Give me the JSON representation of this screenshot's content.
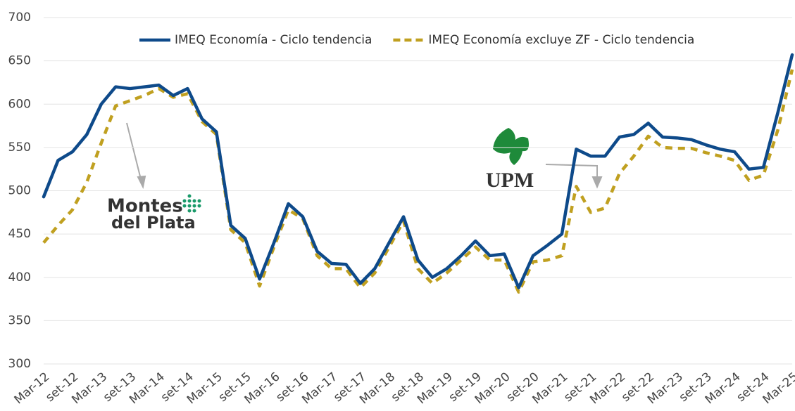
{
  "chart_data": {
    "type": "line",
    "categories": [
      "Mar-12",
      null,
      "set-12",
      null,
      "Mar-13",
      null,
      "set-13",
      null,
      "Mar-14",
      null,
      "set-14",
      null,
      "Mar-15",
      null,
      "set-15",
      null,
      "Mar-16",
      null,
      "set-16",
      null,
      "Mar-17",
      null,
      "set-17",
      null,
      "Mar-18",
      null,
      "set-18",
      null,
      "Mar-19",
      null,
      "set-19",
      null,
      "Mar-20",
      null,
      "set-20",
      null,
      "Mar-21",
      null,
      "set-21",
      null,
      "Mar-22",
      null,
      "set-22",
      null,
      "Mar-23",
      null,
      "set-23",
      null,
      "Mar-24",
      null,
      "set-24",
      null,
      "Mar-25"
    ],
    "series": [
      {
        "name": "IMEQ Economía - Ciclo tendencia",
        "color": "#0e4a8a",
        "dash": false,
        "values": [
          493,
          535,
          545,
          565,
          600,
          620,
          618,
          620,
          622,
          610,
          618,
          583,
          568,
          460,
          445,
          398,
          440,
          485,
          470,
          430,
          416,
          415,
          393,
          410,
          440,
          470,
          420,
          400,
          410,
          425,
          442,
          425,
          427,
          388,
          425,
          437,
          450,
          548,
          540,
          540,
          562,
          565,
          578,
          562,
          561,
          559,
          553,
          548,
          545,
          525,
          527,
          590,
          657
        ]
      },
      {
        "name": "IMEQ Economía excluye ZF - Ciclo tendencia",
        "color": "#c0a020",
        "dash": true,
        "values": [
          440,
          460,
          478,
          510,
          555,
          598,
          604,
          610,
          618,
          608,
          612,
          580,
          565,
          455,
          440,
          390,
          435,
          478,
          468,
          425,
          410,
          410,
          388,
          405,
          435,
          465,
          410,
          393,
          405,
          420,
          435,
          420,
          420,
          383,
          418,
          420,
          425,
          505,
          475,
          480,
          520,
          540,
          563,
          550,
          549,
          549,
          544,
          540,
          535,
          512,
          518,
          570,
          640
        ]
      }
    ],
    "ylim": [
      300,
      700
    ],
    "yticks": [
      300,
      350,
      400,
      450,
      500,
      550,
      600,
      650,
      700
    ],
    "grid": true,
    "legend": "top",
    "annotations": [
      "Montes",
      "del Plata",
      "UPM"
    ]
  }
}
